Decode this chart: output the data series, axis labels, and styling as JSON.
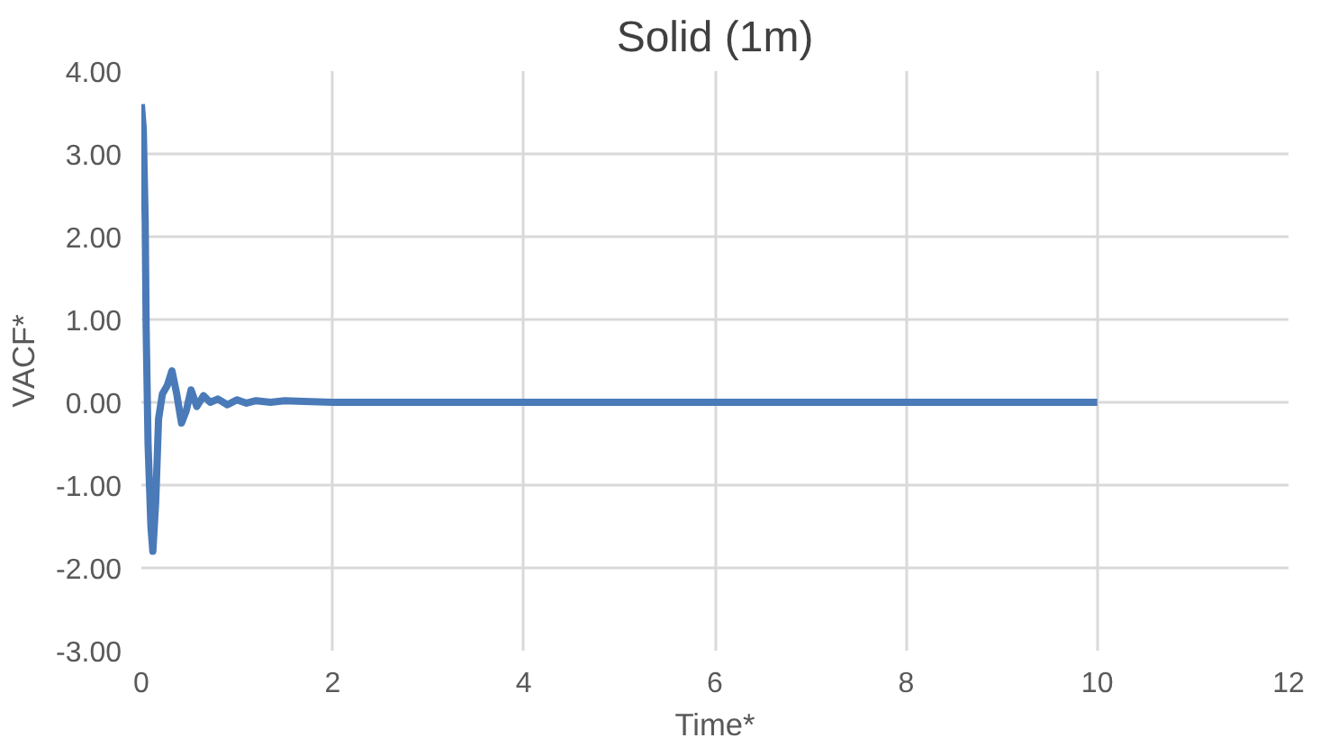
{
  "chart_data": {
    "type": "line",
    "title": "Solid (1m)",
    "xlabel": "Time*",
    "ylabel": "VACF*",
    "x": [
      0,
      0.02,
      0.04,
      0.05,
      0.07,
      0.1,
      0.12,
      0.15,
      0.18,
      0.22,
      0.27,
      0.32,
      0.37,
      0.42,
      0.47,
      0.52,
      0.58,
      0.65,
      0.72,
      0.8,
      0.9,
      1.0,
      1.1,
      1.2,
      1.35,
      1.5,
      1.7,
      2,
      10
    ],
    "series": [
      {
        "color": "#4a7ab8",
        "values": [
          3.6,
          3.3,
          2.2,
          0.9,
          -0.5,
          -1.5,
          -1.8,
          -1.2,
          -0.2,
          0.1,
          0.2,
          0.38,
          0.1,
          -0.25,
          -0.1,
          0.15,
          -0.05,
          0.08,
          0.0,
          0.04,
          -0.03,
          0.03,
          -0.01,
          0.02,
          0.0,
          0.02,
          0.01,
          0,
          0
        ]
      }
    ],
    "xlim": [
      0,
      12
    ],
    "xticks": [
      0,
      2,
      4,
      6,
      8,
      10,
      12
    ],
    "ylim": [
      -3,
      4
    ],
    "yticks": [
      {
        "value": -3,
        "label": "-3.00"
      },
      {
        "value": -2,
        "label": "-2.00"
      },
      {
        "value": -1,
        "label": "-1.00"
      },
      {
        "value": 0,
        "label": "0.00"
      },
      {
        "value": 1,
        "label": "1.00"
      },
      {
        "value": 2,
        "label": "2.00"
      },
      {
        "value": 3,
        "label": "3.00"
      },
      {
        "value": 4,
        "label": "4.00"
      }
    ],
    "grid": true,
    "marker": "none",
    "line_style": "solid"
  }
}
